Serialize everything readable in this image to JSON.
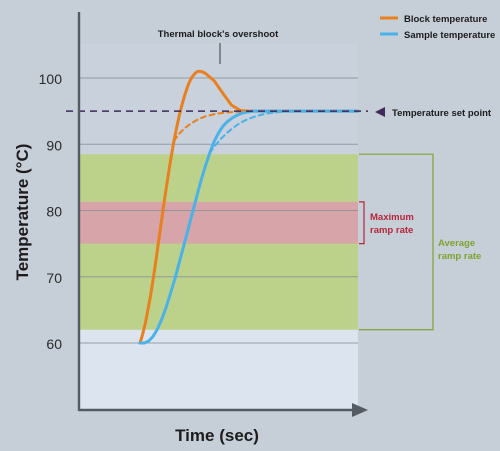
{
  "chart_data": {
    "type": "line",
    "title": "",
    "xlabel": "Time (sec)",
    "ylabel": "Temperature (°C)",
    "ylim": [
      55,
      105
    ],
    "yticks": [
      60,
      70,
      80,
      90,
      100
    ],
    "grid": true,
    "legend_position": "top-right",
    "series": [
      {
        "name": "Block temperature",
        "color": "#e9801f",
        "x": [
          0.0,
          1.2,
          2.4,
          3.6,
          4.8,
          6.0,
          7.2,
          8.4,
          9.6,
          10.8,
          12.0,
          13.2,
          14.4,
          15.6,
          16.8,
          18.0,
          19.2,
          20.4,
          21.6,
          22.8,
          24.0,
          25.2,
          26.4,
          27.6,
          28.8,
          30.0,
          34.0,
          38.0,
          42.0,
          46.0,
          50.0,
          54.0,
          58.0,
          62.0,
          66.0,
          70.0,
          74.0,
          78.0,
          82.0,
          86.0,
          90.0,
          94.0,
          98.0,
          100.0
        ],
        "y": [
          60.0,
          61.3,
          62.9,
          64.9,
          67.1,
          69.6,
          72.2,
          75.0,
          77.8,
          80.6,
          83.3,
          85.9,
          88.3,
          90.5,
          92.5,
          94.3,
          95.9,
          97.3,
          98.5,
          99.5,
          100.2,
          100.7,
          101.0,
          101.0,
          100.9,
          100.7,
          99.6,
          97.7,
          95.9,
          95.1,
          95.0,
          95.0,
          95.0,
          95.0,
          95.0,
          95.0,
          95.0,
          95.0,
          95.0,
          95.0,
          95.0,
          95.0,
          95.0,
          95.0
        ]
      },
      {
        "name": "Sample temperature",
        "color": "#4ab2e8",
        "x": [
          0.0,
          2.0,
          4.0,
          6.0,
          8.0,
          10.0,
          12.0,
          14.0,
          16.0,
          18.0,
          20.0,
          22.0,
          24.0,
          26.0,
          28.0,
          30.0,
          32.0,
          34.0,
          36.0,
          38.0,
          40.0,
          42.0,
          44.0,
          46.0,
          48.0,
          50.0,
          52.0,
          54.0,
          56.0,
          58.0,
          60.0,
          62.0,
          64.0,
          66.0,
          68.0,
          70.0,
          74.0,
          78.0,
          82.0,
          86.0,
          90.0,
          94.0,
          98.0,
          100.0
        ],
        "y": [
          60.0,
          60.0,
          60.3,
          61.0,
          62.1,
          63.6,
          65.4,
          67.5,
          69.7,
          72.1,
          74.6,
          77.1,
          79.6,
          82.1,
          84.5,
          86.7,
          88.7,
          90.4,
          91.7,
          92.7,
          93.4,
          93.9,
          94.3,
          94.6,
          94.8,
          94.9,
          95.0,
          95.0,
          95.0,
          95.0,
          95.0,
          95.0,
          95.0,
          95.0,
          95.0,
          95.0,
          95.0,
          95.0,
          95.0,
          95.0,
          95.0,
          95.0,
          95.0,
          95.0
        ]
      },
      {
        "name": "",
        "color": "#e9801f",
        "dashed": true,
        "x": [
          15.6,
          18.0,
          20.4,
          22.8,
          25.2,
          27.6,
          30.0,
          32.4,
          34.8,
          37.2,
          39.6,
          42.0,
          44.4,
          46.8,
          49.2,
          51.6,
          54.0
        ],
        "y": [
          90.5,
          91.6,
          92.4,
          93.0,
          93.5,
          93.9,
          94.2,
          94.4,
          94.6,
          94.7,
          94.8,
          94.85,
          94.9,
          94.95,
          94.98,
          95.0,
          95.0
        ]
      },
      {
        "name": "",
        "color": "#4ab2e8",
        "dashed": true,
        "x": [
          32.0,
          34.5,
          37.0,
          39.5,
          42.0,
          44.5,
          47.0,
          49.5,
          52.0,
          54.5,
          57.0,
          59.5,
          62.0,
          64.5,
          67.0,
          69.5,
          72.0
        ],
        "y": [
          88.7,
          89.8,
          90.8,
          91.6,
          92.3,
          92.9,
          93.4,
          93.8,
          94.1,
          94.35,
          94.55,
          94.7,
          94.8,
          94.88,
          94.94,
          94.98,
          95.0
        ]
      }
    ],
    "bands": [
      {
        "name": "average",
        "from": 62,
        "to": 88.5,
        "color": "#bcd28a"
      },
      {
        "name": "maximum",
        "from": 75,
        "to": 81.3,
        "color": "#d6a4a9"
      }
    ],
    "set_point": {
      "value": 95,
      "color": "#3e2a5c"
    },
    "annotations": {
      "overshoot": "Thermal block's overshoot",
      "set_point": "Temperature set point",
      "max_ramp": [
        "Maximum",
        "ramp rate"
      ],
      "avg_ramp": [
        "Average",
        "ramp rate"
      ]
    },
    "annotation_colors": {
      "max_ramp": "#b5263a",
      "avg_ramp": "#7ea32f"
    }
  }
}
